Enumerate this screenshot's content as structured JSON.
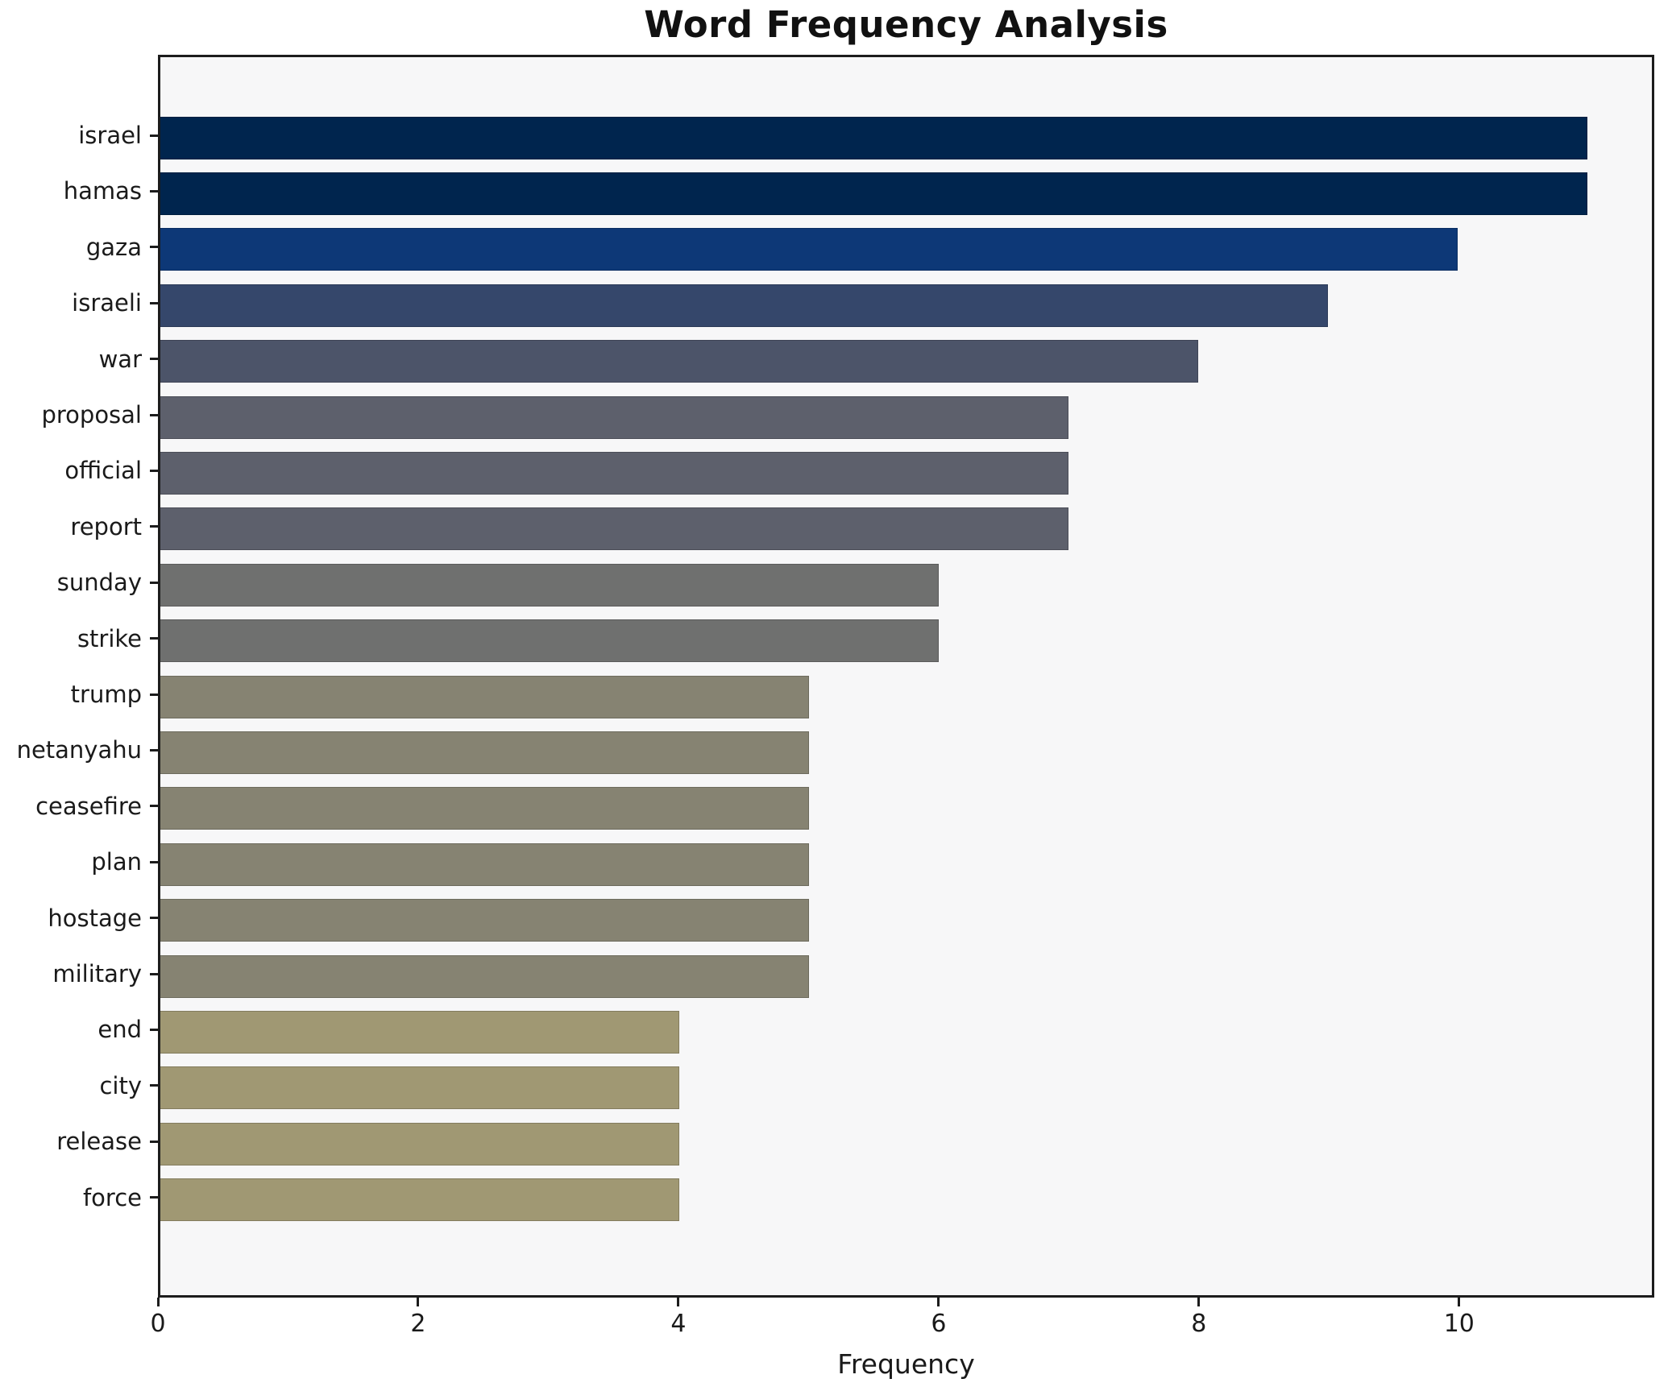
{
  "chart_data": {
    "type": "bar",
    "orientation": "horizontal",
    "title": "Word Frequency Analysis",
    "xlabel": "Frequency",
    "ylabel": "",
    "categories": [
      "israel",
      "hamas",
      "gaza",
      "israeli",
      "war",
      "proposal",
      "official",
      "report",
      "sunday",
      "strike",
      "trump",
      "netanyahu",
      "ceasefire",
      "plan",
      "hostage",
      "military",
      "end",
      "city",
      "release",
      "force"
    ],
    "values": [
      11,
      11,
      10,
      9,
      8,
      7,
      7,
      7,
      6,
      6,
      5,
      5,
      5,
      5,
      5,
      5,
      4,
      4,
      4,
      4
    ],
    "bar_colors": [
      "#00254e",
      "#00254e",
      "#0d3877",
      "#35476b",
      "#4c5469",
      "#5d606c",
      "#5d606c",
      "#5d606c",
      "#6f706f",
      "#6f706f",
      "#868372",
      "#868372",
      "#868372",
      "#868372",
      "#868372",
      "#868372",
      "#a09873",
      "#a09873",
      "#a09873",
      "#a09873"
    ],
    "xlim": [
      0,
      11.5
    ],
    "x_ticks": [
      0,
      2,
      4,
      6,
      8,
      10
    ],
    "grid": false,
    "legend": null,
    "plot_background": "#f7f7f8",
    "figure_background": "#ffffff",
    "spine_color": "#1c1c1c"
  }
}
